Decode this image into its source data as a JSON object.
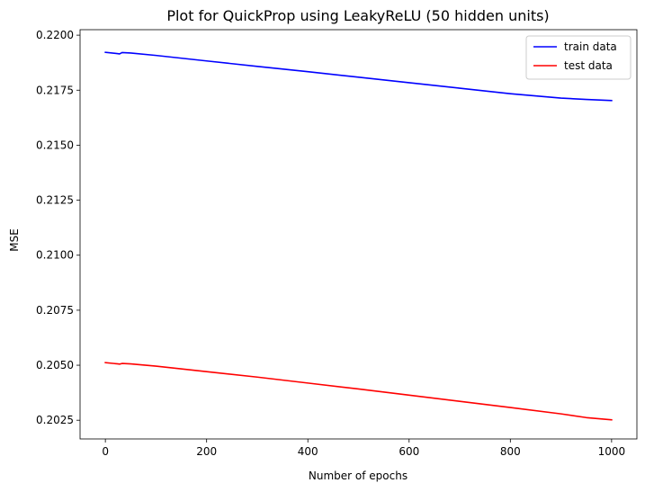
{
  "chart_data": {
    "type": "line",
    "title": "Plot for QuickProp using LeakyReLU (50 hidden units)",
    "xlabel": "Number of epochs",
    "ylabel": "MSE",
    "xlim": [
      -50,
      1050
    ],
    "ylim": [
      0.20165,
      0.22025
    ],
    "x_ticks": [
      0,
      200,
      400,
      600,
      800,
      1000
    ],
    "x_tick_labels": [
      "0",
      "200",
      "400",
      "600",
      "800",
      "1000"
    ],
    "y_ticks": [
      0.2025,
      0.205,
      0.2075,
      0.21,
      0.2125,
      0.215,
      0.2175,
      0.22
    ],
    "y_tick_labels": [
      "0.2025",
      "0.2050",
      "0.2075",
      "0.2100",
      "0.2125",
      "0.2150",
      "0.2175",
      "0.2200"
    ],
    "grid": false,
    "legend": "top-right",
    "series": [
      {
        "name": "train data",
        "color": "#0000ff",
        "x": [
          0,
          25,
          28,
          33,
          50,
          100,
          200,
          300,
          400,
          500,
          600,
          700,
          800,
          900,
          950,
          1000
        ],
        "y": [
          0.21922,
          0.21916,
          0.21915,
          0.21921,
          0.21919,
          0.21908,
          0.21883,
          0.21858,
          0.21834,
          0.21809,
          0.21784,
          0.21759,
          0.21734,
          0.21714,
          0.21708,
          0.21703
        ]
      },
      {
        "name": "test data",
        "color": "#ff0000",
        "x": [
          0,
          25,
          28,
          33,
          50,
          100,
          200,
          300,
          400,
          500,
          600,
          700,
          800,
          900,
          950,
          1000
        ],
        "y": [
          0.20512,
          0.20506,
          0.20505,
          0.20508,
          0.20506,
          0.20496,
          0.20471,
          0.20446,
          0.20419,
          0.20392,
          0.20364,
          0.20336,
          0.20308,
          0.20279,
          0.20262,
          0.20252
        ]
      }
    ]
  }
}
